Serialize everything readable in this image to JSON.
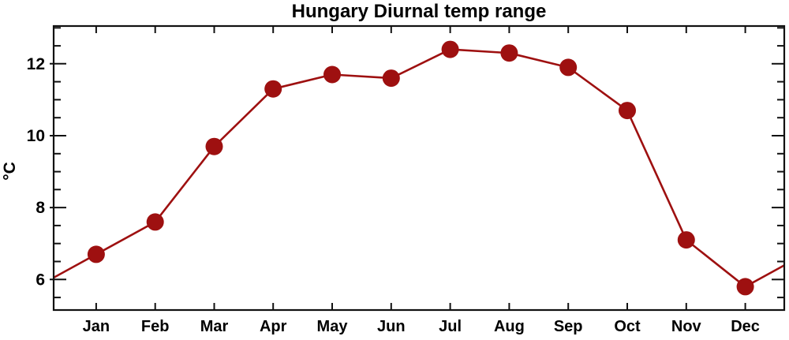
{
  "figure": {
    "background": "#ffffff"
  },
  "chart_data": {
    "type": "line",
    "title": "Hungary Diurnal temp range",
    "xlabel": "",
    "ylabel": "°C",
    "categories": [
      "Jan",
      "Feb",
      "Mar",
      "Apr",
      "May",
      "Jun",
      "Jul",
      "Aug",
      "Sep",
      "Oct",
      "Nov",
      "Dec"
    ],
    "values": [
      6.7,
      7.6,
      9.7,
      11.3,
      11.7,
      11.6,
      12.4,
      12.3,
      11.9,
      10.7,
      7.1,
      5.8
    ],
    "xlim": [
      0.28,
      12.66
    ],
    "ylim": [
      5.15,
      13.05
    ],
    "yticks_major": [
      6,
      8,
      10,
      12
    ],
    "ytick_minor_step": 0.5,
    "grid": false,
    "legend": null,
    "wraparound_line": true,
    "line_color": "#9e1010",
    "marker": "filled-circle",
    "marker_color": "#9e1010",
    "frame_color": "#111111",
    "text_color": "#000000"
  }
}
